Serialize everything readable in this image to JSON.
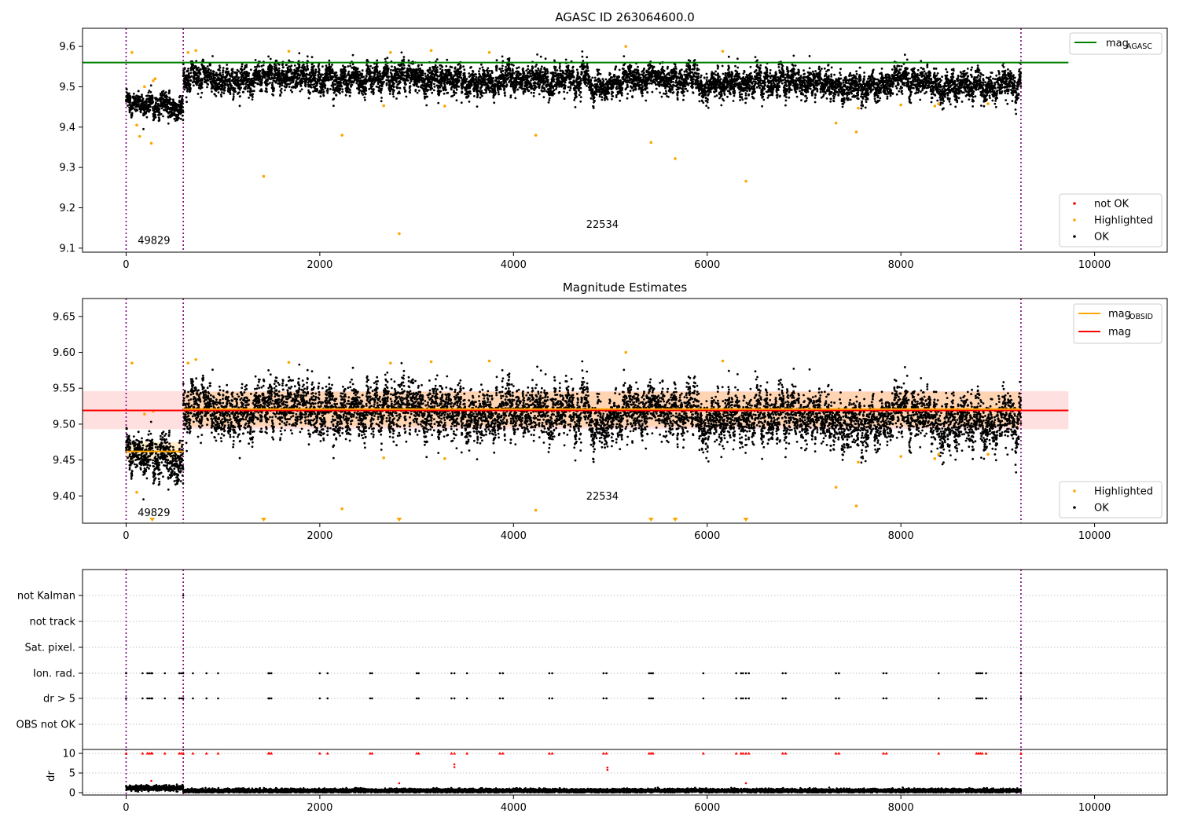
{
  "figure": {
    "panels": [
      {
        "title": "AGASC ID 263064600.0",
        "legend_lines": [
          {
            "label": "mag",
            "sub": "AGASC",
            "color": "#008000"
          }
        ],
        "legend_points": [
          {
            "label": "not OK",
            "color": "#ff0000"
          },
          {
            "label": "Highlighted",
            "color": "#ffa500"
          },
          {
            "label": "OK",
            "color": "#000000"
          }
        ],
        "obsid_labels": [
          "49829",
          "22534"
        ]
      },
      {
        "title": "Magnitude Estimates",
        "legend_lines": [
          {
            "label": "mag",
            "sub": "OBSID",
            "color": "#ffa500"
          },
          {
            "label": "mag",
            "sub": "",
            "color": "#ff0000"
          }
        ],
        "legend_points": [
          {
            "label": "Highlighted",
            "color": "#ffa500"
          },
          {
            "label": "OK",
            "color": "#000000"
          }
        ],
        "obsid_labels": [
          "49829",
          "22534"
        ]
      },
      {
        "title": "",
        "flag_labels": [
          "not Kalman",
          "not track",
          "Sat. pixel.",
          "Ion. rad.",
          "dr > 5",
          "OBS not OK"
        ]
      },
      {
        "title": "",
        "ylabel": "dr"
      }
    ]
  },
  "chart_data": [
    {
      "type": "scatter",
      "title": "AGASC ID 263064600.0",
      "xlim": [
        -450,
        10750
      ],
      "ylim": [
        9.09,
        9.645
      ],
      "xticks": [
        0,
        2000,
        4000,
        6000,
        8000,
        10000
      ],
      "yticks": [
        9.1,
        9.2,
        9.3,
        9.4,
        9.5,
        9.6
      ],
      "grid": false,
      "legend_placement": [
        "upper right",
        "lower right"
      ],
      "obsid_boundaries": [
        0,
        590,
        9240
      ],
      "obsid_label_positions": [
        [
          120,
          9.11
        ],
        [
          4750,
          9.15
        ]
      ],
      "obsid_segments": [
        {
          "x0": 0,
          "x1": 590,
          "mean": 9.463,
          "std": 0.02
        },
        {
          "x0": 590,
          "x1": 9240,
          "mean": 9.525,
          "std": 0.025
        }
      ],
      "series": [
        {
          "name": "mag",
          "kind": "hline",
          "y": 9.56,
          "x0": -450,
          "x1": 9730,
          "color": "#008000"
        }
      ],
      "highlighted_points": [
        [
          60,
          9.585
        ],
        [
          110,
          9.405
        ],
        [
          140,
          9.377
        ],
        [
          190,
          9.5
        ],
        [
          260,
          9.36
        ],
        [
          280,
          9.515
        ],
        [
          300,
          9.52
        ],
        [
          640,
          9.585
        ],
        [
          720,
          9.59
        ],
        [
          1420,
          9.278
        ],
        [
          1680,
          9.588
        ],
        [
          2230,
          9.38
        ],
        [
          2660,
          9.453
        ],
        [
          2730,
          9.585
        ],
        [
          2820,
          9.136
        ],
        [
          3150,
          9.59
        ],
        [
          3290,
          9.452
        ],
        [
          3750,
          9.585
        ],
        [
          4230,
          9.38
        ],
        [
          5160,
          9.6
        ],
        [
          5420,
          9.362
        ],
        [
          5670,
          9.322
        ],
        [
          6160,
          9.588
        ],
        [
          6400,
          9.266
        ],
        [
          7330,
          9.41
        ],
        [
          7540,
          9.388
        ],
        [
          7560,
          9.447
        ],
        [
          8000,
          9.455
        ],
        [
          8350,
          9.452
        ],
        [
          8390,
          9.458
        ],
        [
          8900,
          9.458
        ]
      ]
    },
    {
      "type": "scatter",
      "title": "Magnitude Estimates",
      "xlim": [
        -450,
        10750
      ],
      "ylim": [
        9.362,
        9.675
      ],
      "xticks": [
        0,
        2000,
        4000,
        6000,
        8000,
        10000
      ],
      "yticks": [
        9.4,
        9.45,
        9.5,
        9.55,
        9.6,
        9.65
      ],
      "grid": false,
      "legend_placement": [
        "upper right",
        "lower right"
      ],
      "obsid_boundaries": [
        0,
        590,
        9240
      ],
      "obsid_label_positions": [
        [
          120,
          9.372
        ],
        [
          4750,
          9.395
        ]
      ],
      "obsid_segments": [
        {
          "x0": 0,
          "x1": 590,
          "mean": 9.463,
          "std": 0.02
        },
        {
          "x0": 590,
          "x1": 9240,
          "mean": 9.525,
          "std": 0.025
        }
      ],
      "series": [
        {
          "name": "mag",
          "kind": "hline",
          "y": 9.519,
          "x0": -450,
          "x1": 9730,
          "color": "#ff0000",
          "band": [
            9.493,
            9.546
          ]
        },
        {
          "name": "mag",
          "kind": "segments",
          "color": "#ffa500",
          "segments": [
            [
              0,
              590,
              9.462
            ],
            [
              590,
              9240,
              9.521
            ]
          ],
          "band": [
            9.497,
            9.545
          ]
        }
      ],
      "highlighted_points": [
        [
          60,
          9.585
        ],
        [
          110,
          9.405
        ],
        [
          190,
          9.514
        ],
        [
          280,
          9.518
        ],
        [
          640,
          9.585
        ],
        [
          720,
          9.59
        ],
        [
          1680,
          9.586
        ],
        [
          2230,
          9.382
        ],
        [
          2660,
          9.453
        ],
        [
          2730,
          9.585
        ],
        [
          3150,
          9.587
        ],
        [
          3290,
          9.452
        ],
        [
          3750,
          9.588
        ],
        [
          4230,
          9.38
        ],
        [
          5160,
          9.6
        ],
        [
          6160,
          9.588
        ],
        [
          7330,
          9.412
        ],
        [
          7540,
          9.386
        ],
        [
          7560,
          9.447
        ],
        [
          8000,
          9.455
        ],
        [
          8350,
          9.452
        ],
        [
          8390,
          9.458
        ],
        [
          8900,
          9.458
        ]
      ],
      "out_of_range_markers": [
        270,
        1420,
        2820,
        5420,
        5670,
        6400
      ]
    },
    {
      "type": "scatter",
      "title": "",
      "xlim": [
        -450,
        10750
      ],
      "categories": [
        "not Kalman",
        "not track",
        "Sat. pixel.",
        "Ion. rad.",
        "dr > 5",
        "OBS not OK"
      ],
      "grid": true,
      "obsid_boundaries": [
        0,
        590,
        9240
      ],
      "flag_events": {
        "not Kalman": [
          590
        ],
        "Ion. rad.": [
          0,
          170,
          220,
          240,
          260,
          270,
          400,
          550,
          570,
          590,
          690,
          830,
          950,
          1470,
          1480,
          1500,
          2000,
          2080,
          2520,
          2540,
          3000,
          3020,
          3360,
          3390,
          3520,
          3860,
          3890,
          4370,
          4400,
          4930,
          4960,
          5400,
          5420,
          5440,
          5960,
          6300,
          6350,
          6370,
          6400,
          6430,
          6780,
          6810,
          7330,
          7360,
          7820,
          7850,
          8390,
          8780,
          8800,
          8820,
          8840,
          8880,
          9240
        ],
        "dr > 5": [
          0,
          170,
          220,
          240,
          260,
          270,
          400,
          550,
          570,
          590,
          690,
          830,
          950,
          1470,
          1480,
          1500,
          2000,
          2080,
          2520,
          2540,
          3000,
          3020,
          3360,
          3390,
          3520,
          3860,
          3890,
          4370,
          4400,
          4930,
          4960,
          5400,
          5420,
          5440,
          5960,
          6300,
          6350,
          6370,
          6400,
          6430,
          6780,
          6810,
          7330,
          7360,
          7820,
          7850,
          8390,
          8780,
          8800,
          8820,
          8840,
          8880,
          9240
        ]
      }
    },
    {
      "type": "scatter",
      "title": "",
      "ylabel": "dr",
      "xlim": [
        -450,
        10750
      ],
      "ylim": [
        -0.6,
        11.0
      ],
      "xticks": [
        0,
        2000,
        4000,
        6000,
        8000,
        10000
      ],
      "yticks": [
        0,
        5,
        10
      ],
      "grid": true,
      "obsid_boundaries": [
        0,
        590,
        9240
      ],
      "clipped_value": 10,
      "high_dr_x": [
        0,
        170,
        220,
        240,
        260,
        270,
        400,
        550,
        570,
        590,
        690,
        830,
        950,
        1470,
        1480,
        1500,
        2000,
        2080,
        2520,
        2540,
        3000,
        3020,
        3360,
        3390,
        3520,
        3860,
        3890,
        4370,
        4400,
        4930,
        4960,
        5400,
        5420,
        5440,
        5960,
        6300,
        6350,
        6370,
        6400,
        6430,
        6780,
        6810,
        7330,
        7360,
        7820,
        7850,
        8390,
        8780,
        8800,
        8820,
        8840,
        8880,
        9240
      ],
      "mid_dr_points": [
        [
          3390,
          6.5
        ],
        [
          3390,
          7.2
        ],
        [
          4970,
          5.8
        ],
        [
          4970,
          6.4
        ],
        [
          260,
          3.0
        ],
        [
          2820,
          2.4
        ],
        [
          6400,
          2.4
        ]
      ],
      "baseline": {
        "segments": [
          {
            "x0": 0,
            "x1": 590,
            "mean": 1.2,
            "spread": 0.5
          },
          {
            "x0": 590,
            "x1": 9240,
            "mean": 0.5,
            "spread": 0.4
          }
        ]
      }
    }
  ]
}
